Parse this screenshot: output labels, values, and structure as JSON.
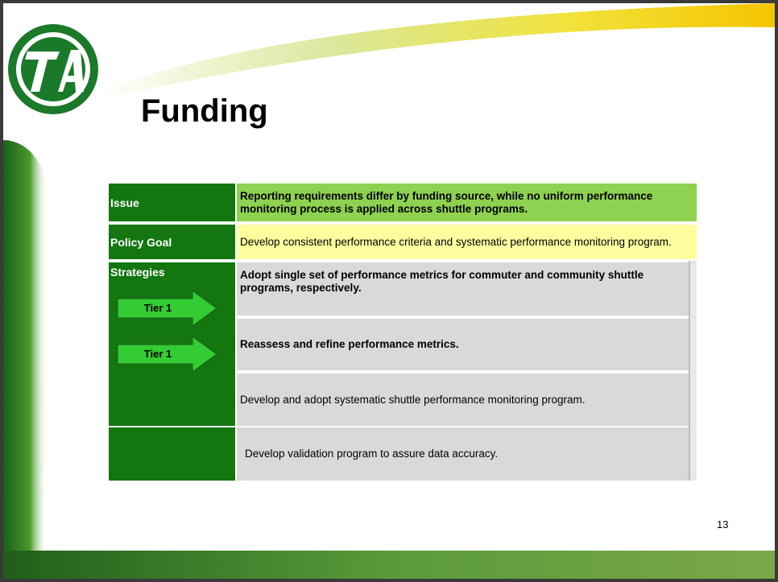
{
  "title": "Funding",
  "table": {
    "issue": {
      "label": "Issue",
      "text": "Reporting requirements differ by funding source, while no uniform performance monitoring process is applied across shuttle programs."
    },
    "policy_goal": {
      "label": "Policy Goal",
      "text": "Develop consistent performance criteria and systematic performance monitoring program."
    },
    "strategies": {
      "label": "Strategies",
      "tiers": [
        "Tier 1",
        "Tier 1"
      ],
      "items": [
        "Adopt single set of performance metrics for commuter and community shuttle programs, respectively.",
        "Reassess and refine performance metrics.",
        "Develop and adopt systematic shuttle performance monitoring program.",
        "Develop validation program to assure data accuracy."
      ]
    }
  },
  "page_number": "13"
}
